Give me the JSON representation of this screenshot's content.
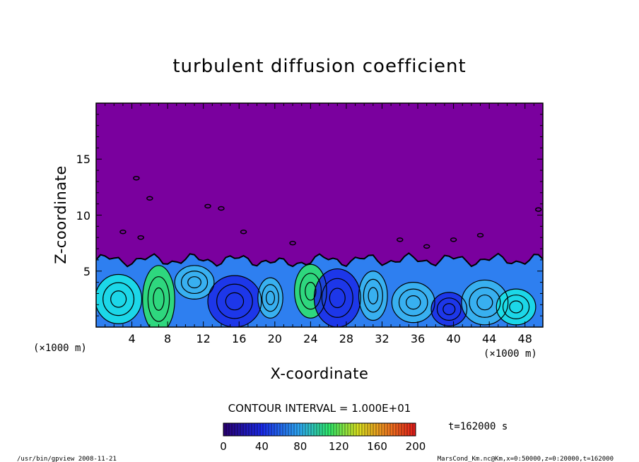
{
  "colors": {
    "background": "#7a009e",
    "deep_blue": "#1a2ae8",
    "mid_blue": "#2e7ff0",
    "light_blue": "#3ab8f0",
    "cyan": "#19e6e6",
    "green": "#2ee66a",
    "contour": "#000000"
  },
  "chart_data": {
    "type": "heatmap",
    "title": "turbulent diffusion coefficient",
    "xlabel": "X-coordinate",
    "ylabel": "Z-coordinate",
    "x_unit": "(×1000 m)",
    "y_unit": "(×1000 m)",
    "xlim": [
      0,
      50
    ],
    "ylim": [
      0,
      20
    ],
    "x_ticks": [
      4,
      8,
      12,
      16,
      20,
      24,
      28,
      32,
      36,
      40,
      44,
      48
    ],
    "y_ticks": [
      5,
      10,
      15
    ],
    "field": "Km",
    "value_range": [
      0,
      200
    ],
    "boundary_layer_top_km": 6,
    "contour_interval_label": "CONTOUR INTERVAL = 1.000E+01",
    "colorbar_ticks": [
      0,
      40,
      80,
      120,
      160,
      200
    ],
    "time_label": "t=162000 s"
  },
  "footer": {
    "left": "/usr/bin/gpview   2008-11-21",
    "right": "MarsCond_Km.nc@Km,x=0:50000,z=0:20000,t=162000"
  }
}
